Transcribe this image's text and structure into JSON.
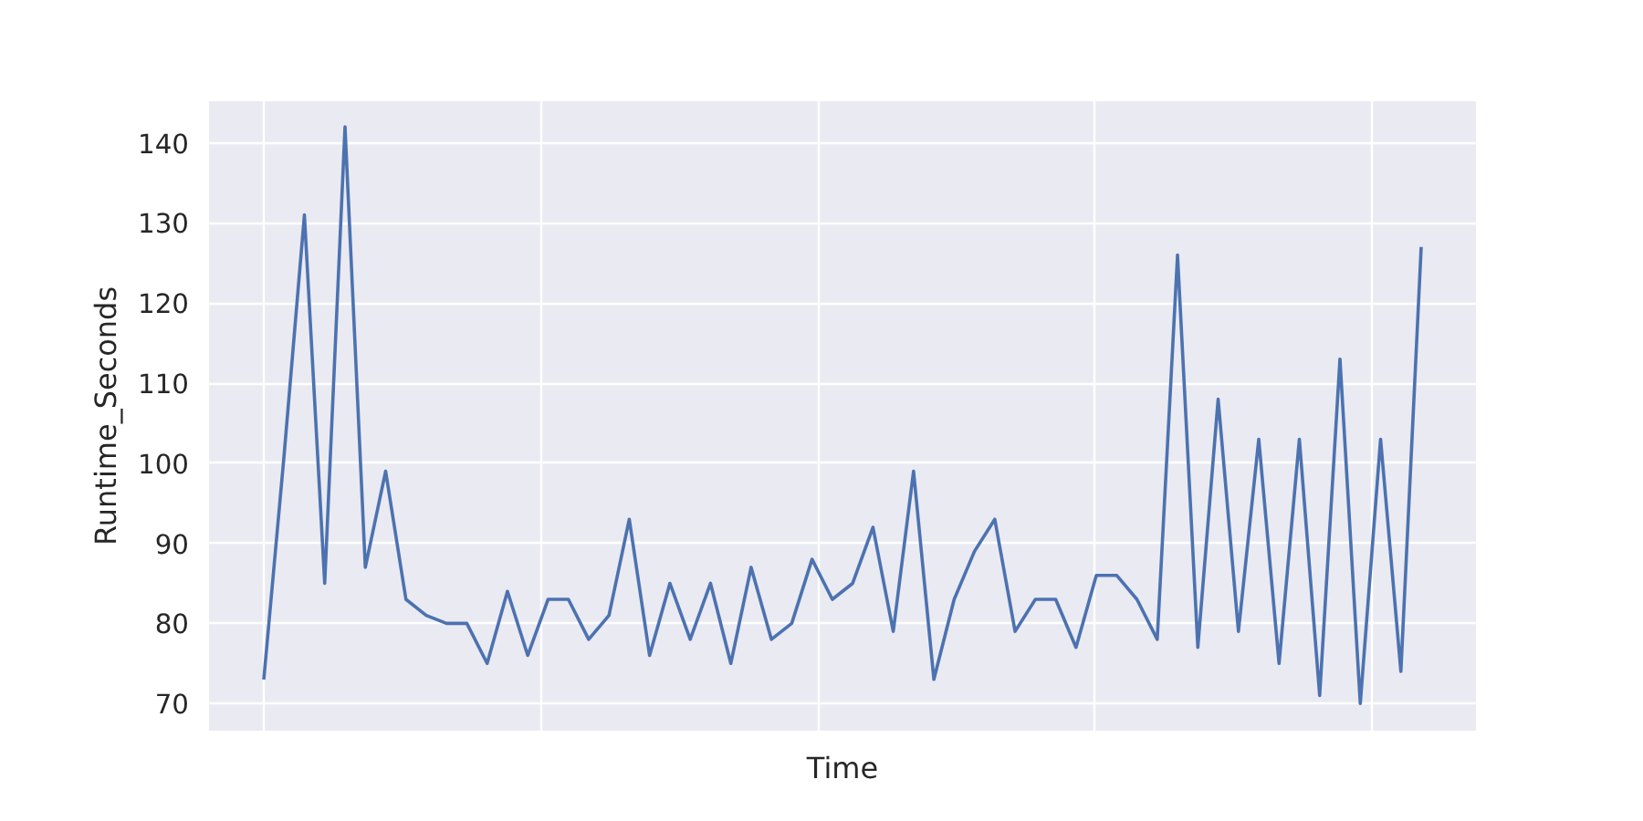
{
  "chart_data": {
    "type": "line",
    "xlabel": "Time",
    "ylabel": "Runtime_Seconds",
    "categories": [
      null,
      null,
      null,
      null,
      null,
      null,
      null,
      null,
      null,
      null,
      null,
      null,
      null,
      null,
      null,
      null,
      null,
      null,
      null,
      null,
      null,
      null,
      null,
      null,
      null,
      null,
      null,
      null,
      null,
      null,
      null,
      null,
      null,
      null,
      null,
      null,
      null,
      null,
      null,
      null,
      null,
      null,
      null,
      null,
      null,
      null,
      null,
      null,
      null,
      null,
      null,
      null,
      null,
      null,
      null,
      null,
      null,
      null
    ],
    "series": [
      {
        "color": "#4c72b0",
        "values": [
          73,
          101,
          131,
          85,
          142,
          87,
          99,
          83,
          81,
          80,
          80,
          75,
          84,
          76,
          83,
          83,
          78,
          81,
          93,
          76,
          85,
          78,
          85,
          75,
          87,
          78,
          80,
          88,
          83,
          85,
          92,
          79,
          99,
          73,
          83,
          89,
          93,
          79,
          83,
          83,
          77,
          86,
          86,
          83,
          78,
          126,
          77,
          108,
          79,
          103,
          75,
          103,
          71,
          113,
          70,
          103,
          74,
          127
        ]
      }
    ],
    "ylim": [
      66.6,
      145.2
    ],
    "yticks": [
      70,
      80,
      90,
      100,
      110,
      120,
      130,
      140
    ],
    "grid": true,
    "marker": "none",
    "line_style": "solid"
  }
}
